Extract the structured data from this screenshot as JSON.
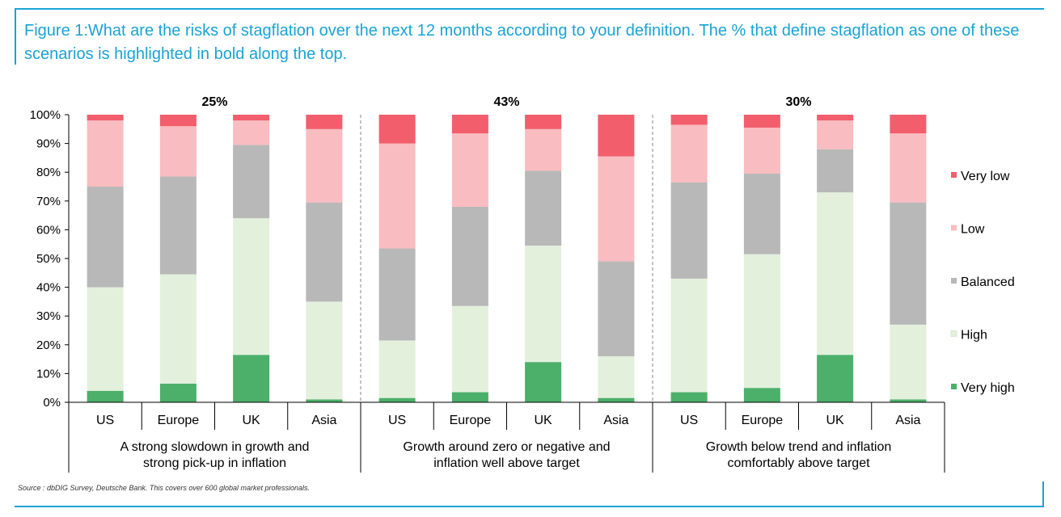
{
  "title": "Figure 1:What are the risks of stagflation over the next 12 months according to your definition. The % that define stagflation as one of these scenarios is highlighted in bold along the top.",
  "source": "Source : dbDIG Survey, Deutsche Bank. This covers over 600 global market professionals.",
  "chart_data": {
    "type": "bar",
    "stacked": true,
    "ylim": [
      0,
      100
    ],
    "yticks": [
      "0%",
      "10%",
      "20%",
      "30%",
      "40%",
      "50%",
      "60%",
      "70%",
      "80%",
      "90%",
      "100%"
    ],
    "grid": false,
    "legend_position": "right",
    "groups": [
      {
        "label": "A strong slowdown in growth and strong pick-up in inflation",
        "highlight": "25%"
      },
      {
        "label": "Growth around zero or negative and inflation well above target",
        "highlight": "43%"
      },
      {
        "label": "Growth below trend and inflation comfortably above target",
        "highlight": "30%"
      }
    ],
    "categories": [
      "US",
      "Europe",
      "UK",
      "Asia",
      "US",
      "Europe",
      "UK",
      "Asia",
      "US",
      "Europe",
      "UK",
      "Asia"
    ],
    "series": [
      {
        "name": "Very high",
        "color": "#4caf6a",
        "values": [
          4,
          6.5,
          16.5,
          1,
          1.5,
          3.5,
          14,
          1.5,
          3.5,
          5,
          16.5,
          1
        ]
      },
      {
        "name": "High",
        "color": "#e3f0dc",
        "values": [
          36,
          38,
          47.5,
          34,
          20,
          30,
          40.5,
          14.5,
          39.5,
          46.5,
          56.5,
          26
        ]
      },
      {
        "name": "Balanced",
        "color": "#b8b8b8",
        "values": [
          35,
          34,
          25.5,
          34.5,
          32,
          34.5,
          26,
          33,
          33.5,
          28,
          15,
          42.5
        ]
      },
      {
        "name": "Low",
        "color": "#f9bcc0",
        "values": [
          23,
          17.5,
          8.5,
          25.5,
          36.5,
          25.5,
          14.5,
          36.5,
          20,
          16,
          10,
          24
        ]
      },
      {
        "name": "Very low",
        "color": "#f25e6c",
        "values": [
          2,
          4,
          2,
          5,
          10,
          6.5,
          5,
          14.5,
          3.5,
          4.5,
          2,
          6.5
        ]
      }
    ]
  }
}
